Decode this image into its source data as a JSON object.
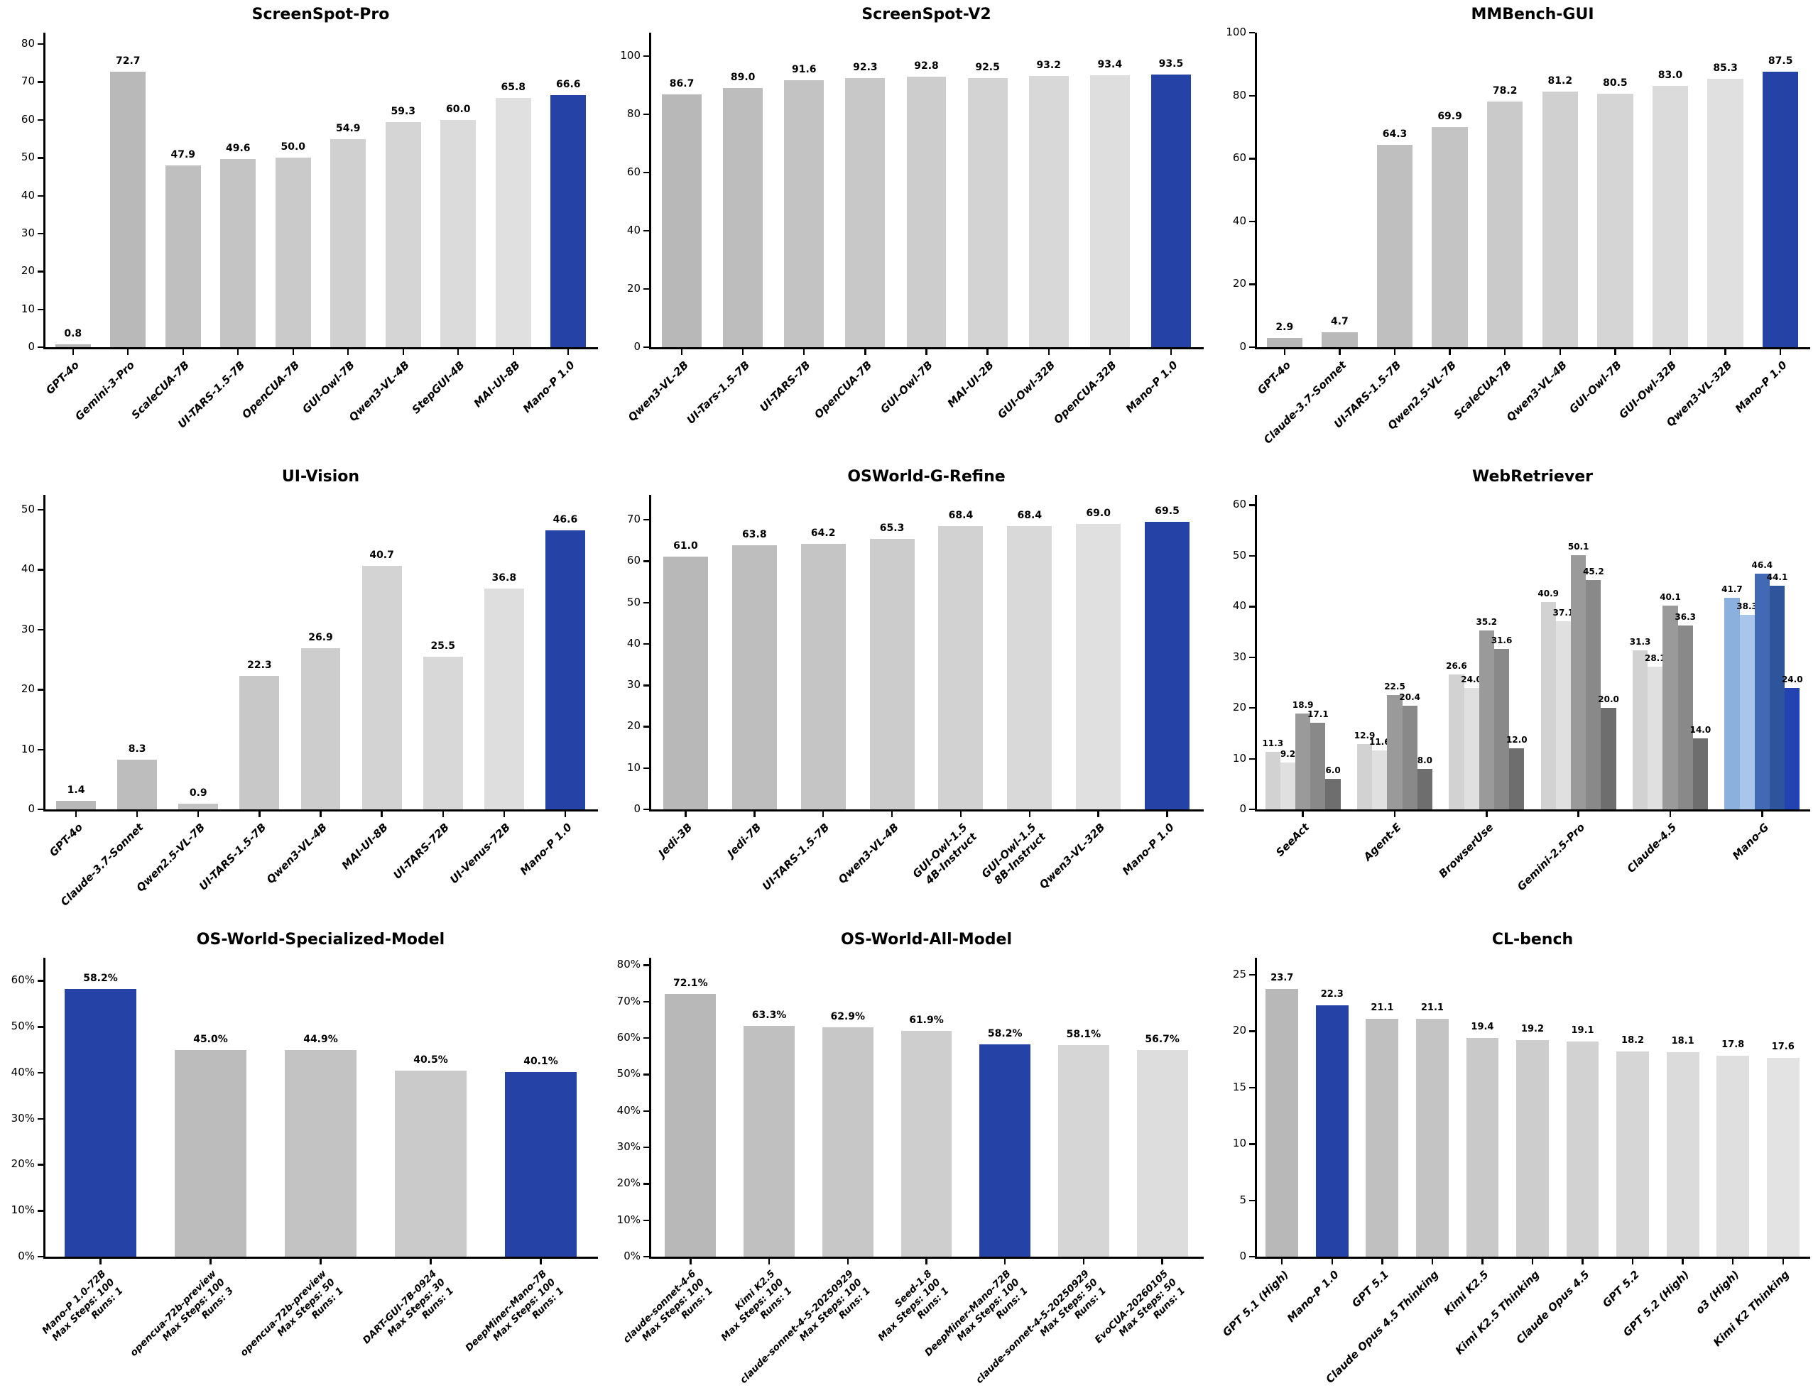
{
  "highlight_color": "#2542a6",
  "chart_data": [
    {
      "type": "bar",
      "title": "ScreenSpot-Pro",
      "categories": [
        "GPT-4o",
        "Gemini-3-Pro",
        "ScaleCUA-7B",
        "UI-TARS-1.5-7B",
        "OpenCUA-7B",
        "GUI-Owl-7B",
        "Qwen3-VL-4B",
        "StepGUI-4B",
        "MAI-UI-8B",
        "Mano-P 1.0"
      ],
      "values": [
        0.8,
        72.7,
        47.9,
        49.6,
        50.0,
        54.9,
        59.3,
        60.0,
        65.8,
        66.6
      ],
      "bar_colors": [
        "#b6b6b6",
        "#b9b9b9",
        "#bfbfbf",
        "#c4c4c4",
        "#cacaca",
        "#d0d0d0",
        "#d5d5d5",
        "#dbdbdb",
        "#e0e0e0",
        "#2542a6"
      ],
      "value_suffix": "",
      "ylim": [
        0,
        83
      ],
      "yticks": [
        0,
        10,
        20,
        30,
        40,
        50,
        60,
        70,
        80
      ],
      "ytick_suffix": "",
      "grid": false,
      "legend": "none"
    },
    {
      "type": "bar",
      "title": "ScreenSpot-V2",
      "categories": [
        "Qwen3-VL-2B",
        "UI-Tars-1.5-7B",
        "UI-TARS-7B",
        "OpenCUA-7B",
        "GUI-Owl-7B",
        "MAI-UI-2B",
        "GUI-Owl-32B",
        "OpenCUA-32B",
        "Mano-P 1.0"
      ],
      "values": [
        86.7,
        89.0,
        91.6,
        92.3,
        92.8,
        92.5,
        93.2,
        93.4,
        93.5
      ],
      "bar_colors": [
        "#b8b8b8",
        "#bdbdbd",
        "#c3c3c3",
        "#c8c8c8",
        "#cdcdcd",
        "#d3d3d3",
        "#d8d8d8",
        "#dedede",
        "#2542a6"
      ],
      "value_suffix": "",
      "ylim": [
        0,
        108
      ],
      "yticks": [
        0,
        20,
        40,
        60,
        80,
        100
      ],
      "ytick_suffix": "",
      "grid": false,
      "legend": "none"
    },
    {
      "type": "bar",
      "title": "MMBench-GUI",
      "categories": [
        "GPT-4o",
        "Claude-3.7-Sonnet",
        "UI-TARS-1.5-7B",
        "Qwen2.5-VL-7B",
        "ScaleCUA-7B",
        "Qwen3-VL-4B",
        "GUI-Owl-7B",
        "GUI-Owl-32B",
        "Qwen3-VL-32B",
        "Mano-P 1.0"
      ],
      "values": [
        2.9,
        4.7,
        64.3,
        69.9,
        78.2,
        81.2,
        80.5,
        83.0,
        85.3,
        87.5
      ],
      "bar_colors": [
        "#b6b6b6",
        "#b9b9b9",
        "#bfbfbf",
        "#c4c4c4",
        "#cacaca",
        "#d0d0d0",
        "#d5d5d5",
        "#dbdbdb",
        "#e0e0e0",
        "#2542a6"
      ],
      "value_suffix": "",
      "ylim": [
        0,
        100
      ],
      "yticks": [
        0,
        20,
        40,
        60,
        80,
        100
      ],
      "ytick_suffix": "",
      "grid": false,
      "legend": "none"
    },
    {
      "type": "bar",
      "title": "UI-Vision",
      "categories": [
        "GPT-4o",
        "Claude-3.7-Sonnet",
        "Qwen2.5-VL-7B",
        "UI-TARS-1.5-7B",
        "Qwen3-VL-4B",
        "MAI-UI-8B",
        "UI-TARS-72B",
        "UI-Venus-72B",
        "Mano-P 1.0"
      ],
      "values": [
        1.4,
        8.3,
        0.9,
        22.3,
        26.9,
        40.7,
        25.5,
        36.8,
        46.6
      ],
      "bar_colors": [
        "#b8b8b8",
        "#bdbdbd",
        "#c3c3c3",
        "#c8c8c8",
        "#cdcdcd",
        "#d3d3d3",
        "#d8d8d8",
        "#dedede",
        "#2542a6"
      ],
      "value_suffix": "",
      "ylim": [
        0,
        52.5
      ],
      "yticks": [
        0,
        10,
        20,
        30,
        40,
        50
      ],
      "ytick_suffix": "",
      "grid": false,
      "legend": "none"
    },
    {
      "type": "bar",
      "title": "OSWorld-G-Refine",
      "categories": [
        "Jedi-3B",
        "Jedi-7B",
        "UI-TARS-1.5-7B",
        "Qwen3-VL-4B",
        [
          "GUI-Owl-1.5",
          "4B-Instruct"
        ],
        [
          "GUI-Owl-1.5",
          "8B-Instruct"
        ],
        "Qwen3-VL-32B",
        "Mano-P 1.0"
      ],
      "values": [
        61.0,
        63.8,
        64.2,
        65.3,
        68.4,
        68.4,
        69.0,
        69.5
      ],
      "bar_colors": [
        "#b8b8b8",
        "#bebebe",
        "#c5c5c5",
        "#cccccc",
        "#d2d2d2",
        "#d9d9d9",
        "#e0e0e0",
        "#2542a6"
      ],
      "value_suffix": "",
      "ylim": [
        0,
        76
      ],
      "yticks": [
        0,
        10,
        20,
        30,
        40,
        50,
        60,
        70
      ],
      "ytick_suffix": "",
      "grid": false,
      "legend": "none"
    },
    {
      "type": "grouped_bar",
      "title": "WebRetriever",
      "categories": [
        "SeeAct",
        "Agent-E",
        "BrowserUse",
        "Gemini-2.5-Pro",
        "Claude-4.5",
        "Mano-G"
      ],
      "series": [
        {
          "name": "series-1",
          "values": [
            11.3,
            12.9,
            26.6,
            40.9,
            31.3,
            41.7
          ]
        },
        {
          "name": "series-2",
          "values": [
            9.2,
            11.6,
            24.0,
            37.1,
            28.1,
            38.3
          ]
        },
        {
          "name": "series-3",
          "values": [
            18.9,
            22.5,
            35.2,
            50.1,
            40.1,
            46.4
          ]
        },
        {
          "name": "series-4",
          "values": [
            17.1,
            20.4,
            31.6,
            45.2,
            36.3,
            44.1
          ]
        },
        {
          "name": "series-5",
          "values": [
            6.0,
            8.0,
            12.0,
            20.0,
            14.0,
            24.0
          ]
        }
      ],
      "gray_palette": [
        "#d2d2d2",
        "#e0e0e0",
        "#9a9a9a",
        "#898989",
        "#6e6e6e"
      ],
      "blue_palette": [
        "#8cb0de",
        "#a9c5ea",
        "#4169b4",
        "#2e549b",
        "#2443b2"
      ],
      "highlight_category": "Mano-G",
      "value_suffix": "",
      "ylim": [
        0,
        62
      ],
      "yticks": [
        0,
        10,
        20,
        30,
        40,
        50,
        60
      ],
      "ytick_suffix": "",
      "grid": false,
      "legend": "none"
    },
    {
      "type": "bar",
      "title": "OS-World-Specialized-Model",
      "categories": [
        [
          "Mano-P 1.0-72B",
          "Max Steps: 100",
          "Runs: 1"
        ],
        [
          "opencua-72b-preview",
          "Max Steps: 100",
          "Runs: 3"
        ],
        [
          "opencua-72b-preview",
          "Max Steps: 50",
          "Runs: 1"
        ],
        [
          "DART-GUI-7B-0924",
          "Max Steps: 30",
          "Runs: 1"
        ],
        [
          "DeepMiner-Mano-7B",
          "Max Steps: 100",
          "Runs: 1"
        ]
      ],
      "values": [
        58.2,
        45.0,
        44.9,
        40.5,
        40.1
      ],
      "bar_colors": [
        "#2542a6",
        "#bcbcbc",
        "#c3c3c3",
        "#cacaca",
        "#2542a6"
      ],
      "value_suffix": "%",
      "ylim": [
        0,
        65
      ],
      "yticks": [
        0,
        10,
        20,
        30,
        40,
        50,
        60
      ],
      "ytick_suffix": "%",
      "grid": false,
      "legend": "none"
    },
    {
      "type": "bar",
      "title": "OS-World-All-Model",
      "categories": [
        [
          "claude-sonnet-4-6",
          "Max Steps: 100",
          "Runs: 1"
        ],
        [
          "Kimi K2.5",
          "Max Steps: 100",
          "Runs: 1"
        ],
        [
          "claude-sonnet-4-5-20250929",
          "Max Steps: 100",
          "Runs: 1"
        ],
        [
          "Seed-1.8",
          "Max Steps: 100",
          "Runs: 1"
        ],
        [
          "DeepMiner-Mano-72B",
          "Max Steps: 100",
          "Runs: 1"
        ],
        [
          "claude-sonnet-4-5-20250929",
          "Max Steps: 50",
          "Runs: 1"
        ],
        [
          "EvoCUA-20260105",
          "Max Steps: 50",
          "Runs: 1"
        ]
      ],
      "values": [
        72.1,
        63.3,
        62.9,
        61.9,
        58.2,
        58.1,
        56.7
      ],
      "bar_colors": [
        "#b8b8b8",
        "#c0c0c0",
        "#c7c7c7",
        "#cecece",
        "#2542a6",
        "#d6d6d6",
        "#dddddd"
      ],
      "value_suffix": "%",
      "ylim": [
        0,
        82
      ],
      "yticks": [
        0,
        10,
        20,
        30,
        40,
        50,
        60,
        70,
        80
      ],
      "ytick_suffix": "%",
      "grid": false,
      "legend": "none"
    },
    {
      "type": "bar",
      "title": "CL-bench",
      "categories": [
        "GPT 5.1 (High)",
        "Mano-P 1.0",
        "GPT 5.1",
        "Claude Opus 4.5 Thinking",
        "Kimi K2.5",
        "Kimi K2.5 Thinking",
        "Claude Opus 4.5",
        "GPT 5.2",
        "GPT 5.2 (High)",
        "o3 (High)",
        "Kimi K2 Thinking"
      ],
      "values": [
        23.7,
        22.3,
        21.1,
        21.1,
        19.4,
        19.2,
        19.1,
        18.2,
        18.1,
        17.8,
        17.6
      ],
      "bar_colors": [
        "#b8b8b8",
        "#2542a6",
        "#c0c0c0",
        "#c4c4c4",
        "#c9c9c9",
        "#cdcdcd",
        "#d2d2d2",
        "#d6d6d6",
        "#dbdbdb",
        "#dfdfdf",
        "#e3e3e3"
      ],
      "value_suffix": "",
      "ylim": [
        0,
        26.5
      ],
      "yticks": [
        0,
        5,
        10,
        15,
        20,
        25
      ],
      "ytick_suffix": "",
      "grid": false,
      "legend": "none"
    }
  ]
}
